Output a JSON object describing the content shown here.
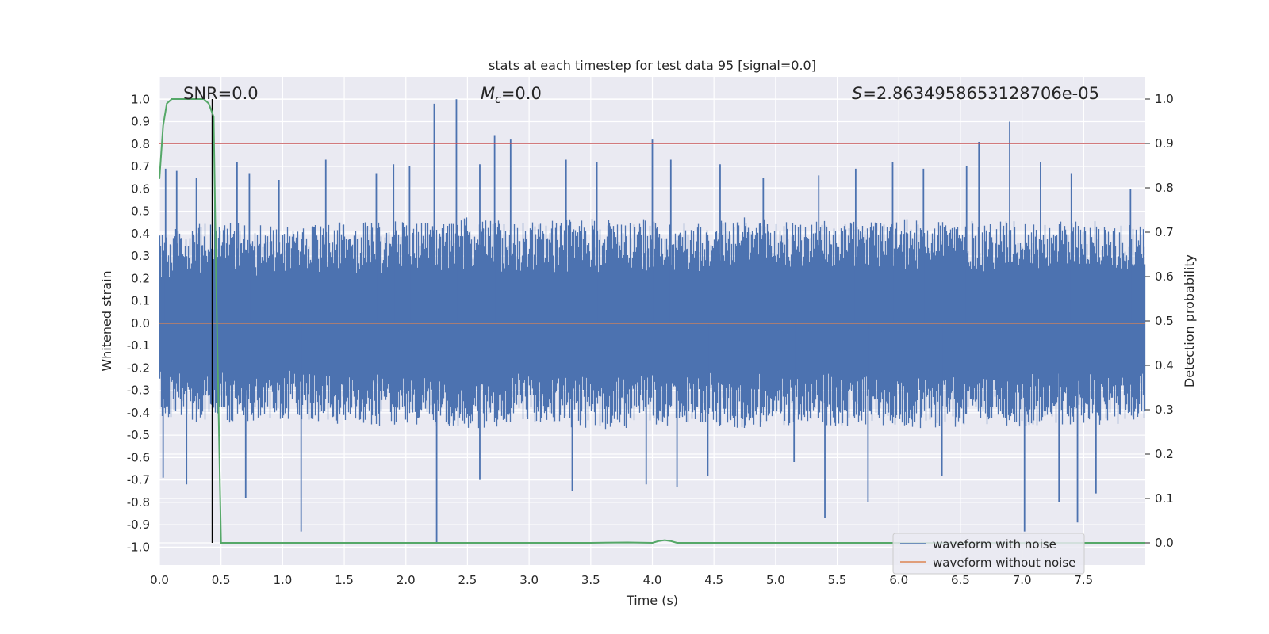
{
  "chart_data": {
    "type": "line",
    "title": "stats at each timestep for test data 95 [signal=0.0]",
    "xlabel": "Time (s)",
    "ylabel": "Whitened strain",
    "ylabel_right": "Detection probability",
    "xlim": [
      0.0,
      8.0
    ],
    "ylim": [
      -1.08,
      1.1
    ],
    "ylim_right": [
      -0.05,
      1.05
    ],
    "x_ticks": [
      "0.0",
      "0.5",
      "1.0",
      "1.5",
      "2.0",
      "2.5",
      "3.0",
      "3.5",
      "4.0",
      "4.5",
      "5.0",
      "5.5",
      "6.0",
      "6.5",
      "7.0",
      "7.5"
    ],
    "y_ticks": [
      "1.0",
      "0.9",
      "0.8",
      "0.7",
      "0.6",
      "0.5",
      "0.4",
      "0.3",
      "0.2",
      "0.1",
      "0.0",
      "-0.1",
      "-0.2",
      "-0.3",
      "-0.4",
      "-0.5",
      "-0.6",
      "-0.7",
      "-0.8",
      "-0.9",
      "-1.0"
    ],
    "y_ticks_right": [
      "1.0",
      "0.9",
      "0.8",
      "0.7",
      "0.6",
      "0.5",
      "0.4",
      "0.3",
      "0.2",
      "0.1",
      "0.0"
    ],
    "grid": true,
    "legend_position": "lower-right",
    "annotations": {
      "snr": "SNR=0.0",
      "mc_symbol": "M",
      "mc_sub": "c",
      "mc_value": "=0.0",
      "s_symbol": "S",
      "s_value": "=2.8634958653128706e-05"
    },
    "threshold": {
      "value": 0.9,
      "axis": "right",
      "color": "#c44e52"
    },
    "marker_line": {
      "x": 0.43,
      "color": "#000000"
    },
    "series": [
      {
        "name": "waveform with noise",
        "color": "#4c72b0",
        "envelope_x": [
          0.0,
          0.25,
          0.5,
          0.75,
          1.0,
          1.25,
          1.5,
          1.75,
          2.0,
          2.25,
          2.5,
          2.75,
          3.0,
          3.25,
          3.5,
          3.75,
          4.0,
          4.25,
          4.5,
          4.75,
          5.0,
          5.25,
          5.5,
          5.75,
          6.0,
          6.25,
          6.5,
          6.75,
          7.0,
          7.25,
          7.5,
          7.75,
          8.0
        ],
        "envelope_typical": [
          0.4,
          0.42,
          0.43,
          0.42,
          0.41,
          0.42,
          0.43,
          0.44,
          0.43,
          0.44,
          0.45,
          0.44,
          0.43,
          0.44,
          0.45,
          0.45,
          0.44,
          0.43,
          0.44,
          0.45,
          0.44,
          0.43,
          0.44,
          0.43,
          0.44,
          0.45,
          0.44,
          0.43,
          0.44,
          0.43,
          0.44,
          0.43,
          0.42
        ],
        "spikes_pos": [
          [
            0.05,
            0.69
          ],
          [
            0.14,
            0.68
          ],
          [
            0.3,
            0.65
          ],
          [
            0.45,
            0.55
          ],
          [
            0.63,
            0.72
          ],
          [
            0.73,
            0.67
          ],
          [
            0.97,
            0.64
          ],
          [
            1.35,
            0.73
          ],
          [
            1.76,
            0.67
          ],
          [
            1.9,
            0.71
          ],
          [
            2.03,
            0.7
          ],
          [
            2.23,
            0.98
          ],
          [
            2.41,
            1.0
          ],
          [
            2.6,
            0.71
          ],
          [
            2.72,
            0.84
          ],
          [
            2.85,
            0.82
          ],
          [
            3.3,
            0.73
          ],
          [
            3.55,
            0.72
          ],
          [
            4.0,
            0.82
          ],
          [
            4.15,
            0.73
          ],
          [
            4.55,
            0.71
          ],
          [
            4.9,
            0.65
          ],
          [
            5.35,
            0.66
          ],
          [
            5.65,
            0.69
          ],
          [
            5.95,
            0.72
          ],
          [
            6.2,
            0.69
          ],
          [
            6.55,
            0.7
          ],
          [
            6.65,
            0.81
          ],
          [
            6.9,
            0.9
          ],
          [
            7.15,
            0.72
          ],
          [
            7.4,
            0.67
          ],
          [
            7.88,
            0.6
          ]
        ],
        "spikes_neg": [
          [
            0.03,
            -0.69
          ],
          [
            0.22,
            -0.72
          ],
          [
            0.7,
            -0.78
          ],
          [
            1.15,
            -0.93
          ],
          [
            2.25,
            -0.98
          ],
          [
            2.6,
            -0.7
          ],
          [
            3.35,
            -0.75
          ],
          [
            3.95,
            -0.72
          ],
          [
            4.2,
            -0.73
          ],
          [
            4.45,
            -0.68
          ],
          [
            5.15,
            -0.62
          ],
          [
            5.4,
            -0.87
          ],
          [
            5.75,
            -0.8
          ],
          [
            6.35,
            -0.68
          ],
          [
            7.02,
            -0.93
          ],
          [
            7.3,
            -0.8
          ],
          [
            7.45,
            -0.89
          ],
          [
            7.6,
            -0.76
          ]
        ]
      },
      {
        "name": "waveform without noise",
        "color": "#dd8452",
        "x": [
          0.0,
          8.0
        ],
        "y": [
          0.0,
          0.0
        ]
      },
      {
        "name": "detection probability",
        "axis": "right",
        "color": "#55a868",
        "x": [
          0.0,
          0.03,
          0.06,
          0.1,
          0.15,
          0.2,
          0.3,
          0.36,
          0.4,
          0.44,
          0.46,
          0.5,
          0.7,
          1.0,
          2.0,
          3.0,
          3.5,
          3.8,
          4.0,
          4.05,
          4.1,
          4.15,
          4.2,
          4.5,
          5.0,
          6.0,
          7.0,
          8.0
        ],
        "y": [
          0.82,
          0.94,
          0.99,
          1.0,
          1.0,
          1.0,
          1.0,
          1.0,
          0.99,
          0.96,
          0.6,
          0.0,
          0.0,
          0.0,
          0.0,
          0.0,
          0.0,
          0.001,
          0.0,
          0.004,
          0.006,
          0.004,
          0.0,
          0.0,
          0.0,
          0.0,
          0.0,
          0.0
        ]
      }
    ]
  }
}
